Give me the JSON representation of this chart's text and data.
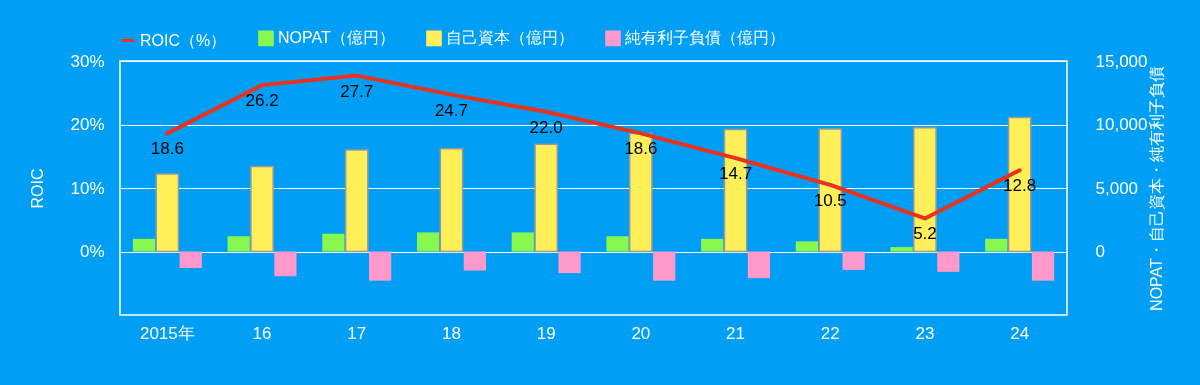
{
  "chart_data": {
    "type": "bar",
    "categories": [
      "2015年",
      "16",
      "17",
      "18",
      "19",
      "20",
      "21",
      "22",
      "23",
      "24"
    ],
    "series": [
      {
        "name": "ROIC（%）",
        "type": "line",
        "axis": "y",
        "color": "#e8321e",
        "values": [
          18.6,
          26.2,
          27.7,
          24.7,
          22.0,
          18.6,
          14.7,
          10.5,
          5.2,
          12.8
        ],
        "value_labels": [
          "18.6",
          "26.2",
          "27.7",
          "24.7",
          "22.0",
          "18.6",
          "14.7",
          "10.5",
          "5.2",
          "12.8"
        ]
      },
      {
        "name": "NOPAT（億円）",
        "axis": "y2",
        "color": "#88f850",
        "values": [
          1000,
          1200,
          1400,
          1500,
          1500,
          1200,
          1000,
          800,
          350,
          1000
        ]
      },
      {
        "name": "自己資本（億円）",
        "axis": "y2",
        "color": "#fff05a",
        "values": [
          6100,
          6700,
          8000,
          8100,
          8450,
          9300,
          9600,
          9650,
          9750,
          10550
        ]
      },
      {
        "name": "純有利子負債（億円）",
        "axis": "y2",
        "color": "#ff99cc",
        "values": [
          -1300,
          -1950,
          -2300,
          -1500,
          -1700,
          -2300,
          -2100,
          -1450,
          -1600,
          -2300
        ]
      }
    ],
    "ylabel": "ROIC",
    "y2label": "NOPAT・自己資本・純有利子負債",
    "ylim": [
      -10,
      30
    ],
    "yticks": [
      {
        "value": 0,
        "label": "0%"
      },
      {
        "value": 10,
        "label": "10%"
      },
      {
        "value": 20,
        "label": "20%"
      },
      {
        "value": 30,
        "label": "30%"
      }
    ],
    "y2lim": [
      -5000,
      15000
    ],
    "y2ticks": [
      0,
      {
        "value": 5000,
        "label": "5,000"
      },
      {
        "value": 10000,
        "label": "10,000"
      },
      {
        "value": 15000,
        "label": "15,000"
      }
    ],
    "grid": "y",
    "legend": "top",
    "marker": "none",
    "line_style": "solid"
  }
}
